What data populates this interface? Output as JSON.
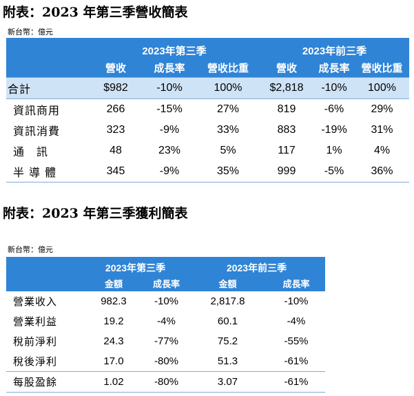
{
  "revenue": {
    "title": "附表：2023 年第三季營收簡表",
    "unit": "新台幣：億元",
    "groups": [
      "2023年第三季",
      "2023年前三季"
    ],
    "sub_headers": [
      "營收",
      "成長率",
      "營收比重",
      "營收",
      "成長率",
      "營收比重"
    ],
    "rows": [
      {
        "label": "合計",
        "cells": [
          "$982",
          "-10%",
          "100%",
          "$2,818",
          "-10%",
          "100%"
        ]
      },
      {
        "label": "資訊商用",
        "cells": [
          "266",
          "-15%",
          "27%",
          "819",
          "-6%",
          "29%"
        ]
      },
      {
        "label": "資訊消費",
        "cells": [
          "323",
          "-9%",
          "33%",
          "883",
          "-19%",
          "31%"
        ]
      },
      {
        "label": "通　訊",
        "cells": [
          "48",
          "23%",
          "5%",
          "117",
          "1%",
          "4%"
        ]
      },
      {
        "label": "半 導 體",
        "cells": [
          "345",
          "-9%",
          "35%",
          "999",
          "-5%",
          "36%"
        ]
      }
    ]
  },
  "profit": {
    "title": "附表：2023 年第三季獲利簡表",
    "unit": "新台幣：億元",
    "groups": [
      "2023年第三季",
      "2023年前三季"
    ],
    "sub_headers": [
      "金額",
      "成長率",
      "金額",
      "成長率"
    ],
    "rows": [
      {
        "label": "營業收入",
        "cells": [
          "982.3",
          "-10%",
          "2,817.8",
          "-10%"
        ]
      },
      {
        "label": "營業利益",
        "cells": [
          "19.2",
          "-4%",
          "60.1",
          "-4%"
        ]
      },
      {
        "label": "稅前淨利",
        "cells": [
          "24.3",
          "-77%",
          "75.2",
          "-55%"
        ]
      },
      {
        "label": "稅後淨利",
        "cells": [
          "17.0",
          "-80%",
          "51.3",
          "-61%"
        ]
      },
      {
        "label": "每股盈餘",
        "cells": [
          "1.02",
          "-80%",
          "3.07",
          "-61%"
        ]
      }
    ]
  }
}
